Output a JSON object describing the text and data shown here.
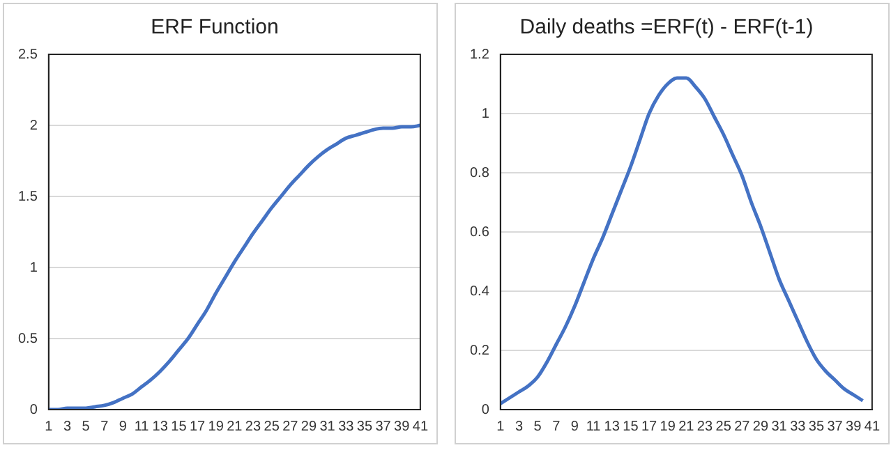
{
  "chart_data": [
    {
      "type": "line",
      "title": "ERF Function",
      "x": [
        1,
        2,
        3,
        4,
        5,
        6,
        7,
        8,
        9,
        10,
        11,
        12,
        13,
        14,
        15,
        16,
        17,
        18,
        19,
        20,
        21,
        22,
        23,
        24,
        25,
        26,
        27,
        28,
        29,
        30,
        31,
        32,
        33,
        34,
        35,
        36,
        37,
        38,
        39,
        40,
        41
      ],
      "series": [
        {
          "color": "#4472c4",
          "values": [
            0,
            0,
            0.01,
            0.01,
            0.01,
            0.02,
            0.03,
            0.05,
            0.08,
            0.11,
            0.16,
            0.21,
            0.27,
            0.34,
            0.42,
            0.5,
            0.6,
            0.7,
            0.82,
            0.93,
            1.04,
            1.14,
            1.24,
            1.33,
            1.42,
            1.5,
            1.58,
            1.65,
            1.72,
            1.78,
            1.83,
            1.87,
            1.91,
            1.93,
            1.95,
            1.97,
            1.98,
            1.98,
            1.99,
            1.99,
            2.0
          ]
        }
      ],
      "xlim": [
        1,
        41
      ],
      "xticks": [
        1,
        3,
        5,
        7,
        9,
        11,
        13,
        15,
        17,
        19,
        21,
        23,
        25,
        27,
        29,
        31,
        33,
        35,
        37,
        39,
        41
      ],
      "ylim": [
        0,
        2.5
      ],
      "yticks": [
        0,
        0.5,
        1,
        1.5,
        2,
        2.5
      ],
      "grid": "y",
      "legend": false,
      "marker": "none",
      "line_style": "solid"
    },
    {
      "type": "line",
      "title": "Daily deaths =ERF(t) - ERF(t-1)",
      "x": [
        1,
        2,
        3,
        4,
        5,
        6,
        7,
        8,
        9,
        10,
        11,
        12,
        13,
        14,
        15,
        16,
        17,
        18,
        19,
        20,
        21,
        22,
        23,
        24,
        25,
        26,
        27,
        28,
        29,
        30,
        31,
        32,
        33,
        34,
        35,
        36,
        37,
        38,
        39,
        40
      ],
      "series": [
        {
          "color": "#4472c4",
          "values": [
            0.02,
            0.04,
            0.06,
            0.08,
            0.11,
            0.16,
            0.22,
            0.28,
            0.35,
            0.43,
            0.51,
            0.58,
            0.66,
            0.74,
            0.82,
            0.91,
            1.0,
            1.06,
            1.1,
            1.12,
            1.12,
            1.09,
            1.05,
            0.99,
            0.93,
            0.86,
            0.79,
            0.7,
            0.62,
            0.53,
            0.44,
            0.37,
            0.3,
            0.23,
            0.17,
            0.13,
            0.1,
            0.07,
            0.05,
            0.03
          ]
        }
      ],
      "xlim": [
        1,
        41
      ],
      "xticks": [
        1,
        3,
        5,
        7,
        9,
        11,
        13,
        15,
        17,
        19,
        21,
        23,
        25,
        27,
        29,
        31,
        33,
        35,
        37,
        39,
        41
      ],
      "ylim": [
        0,
        1.2
      ],
      "yticks": [
        0,
        0.2,
        0.4,
        0.6,
        0.8,
        1,
        1.2
      ],
      "grid": "y",
      "legend": false,
      "marker": "none",
      "line_style": "solid"
    }
  ]
}
